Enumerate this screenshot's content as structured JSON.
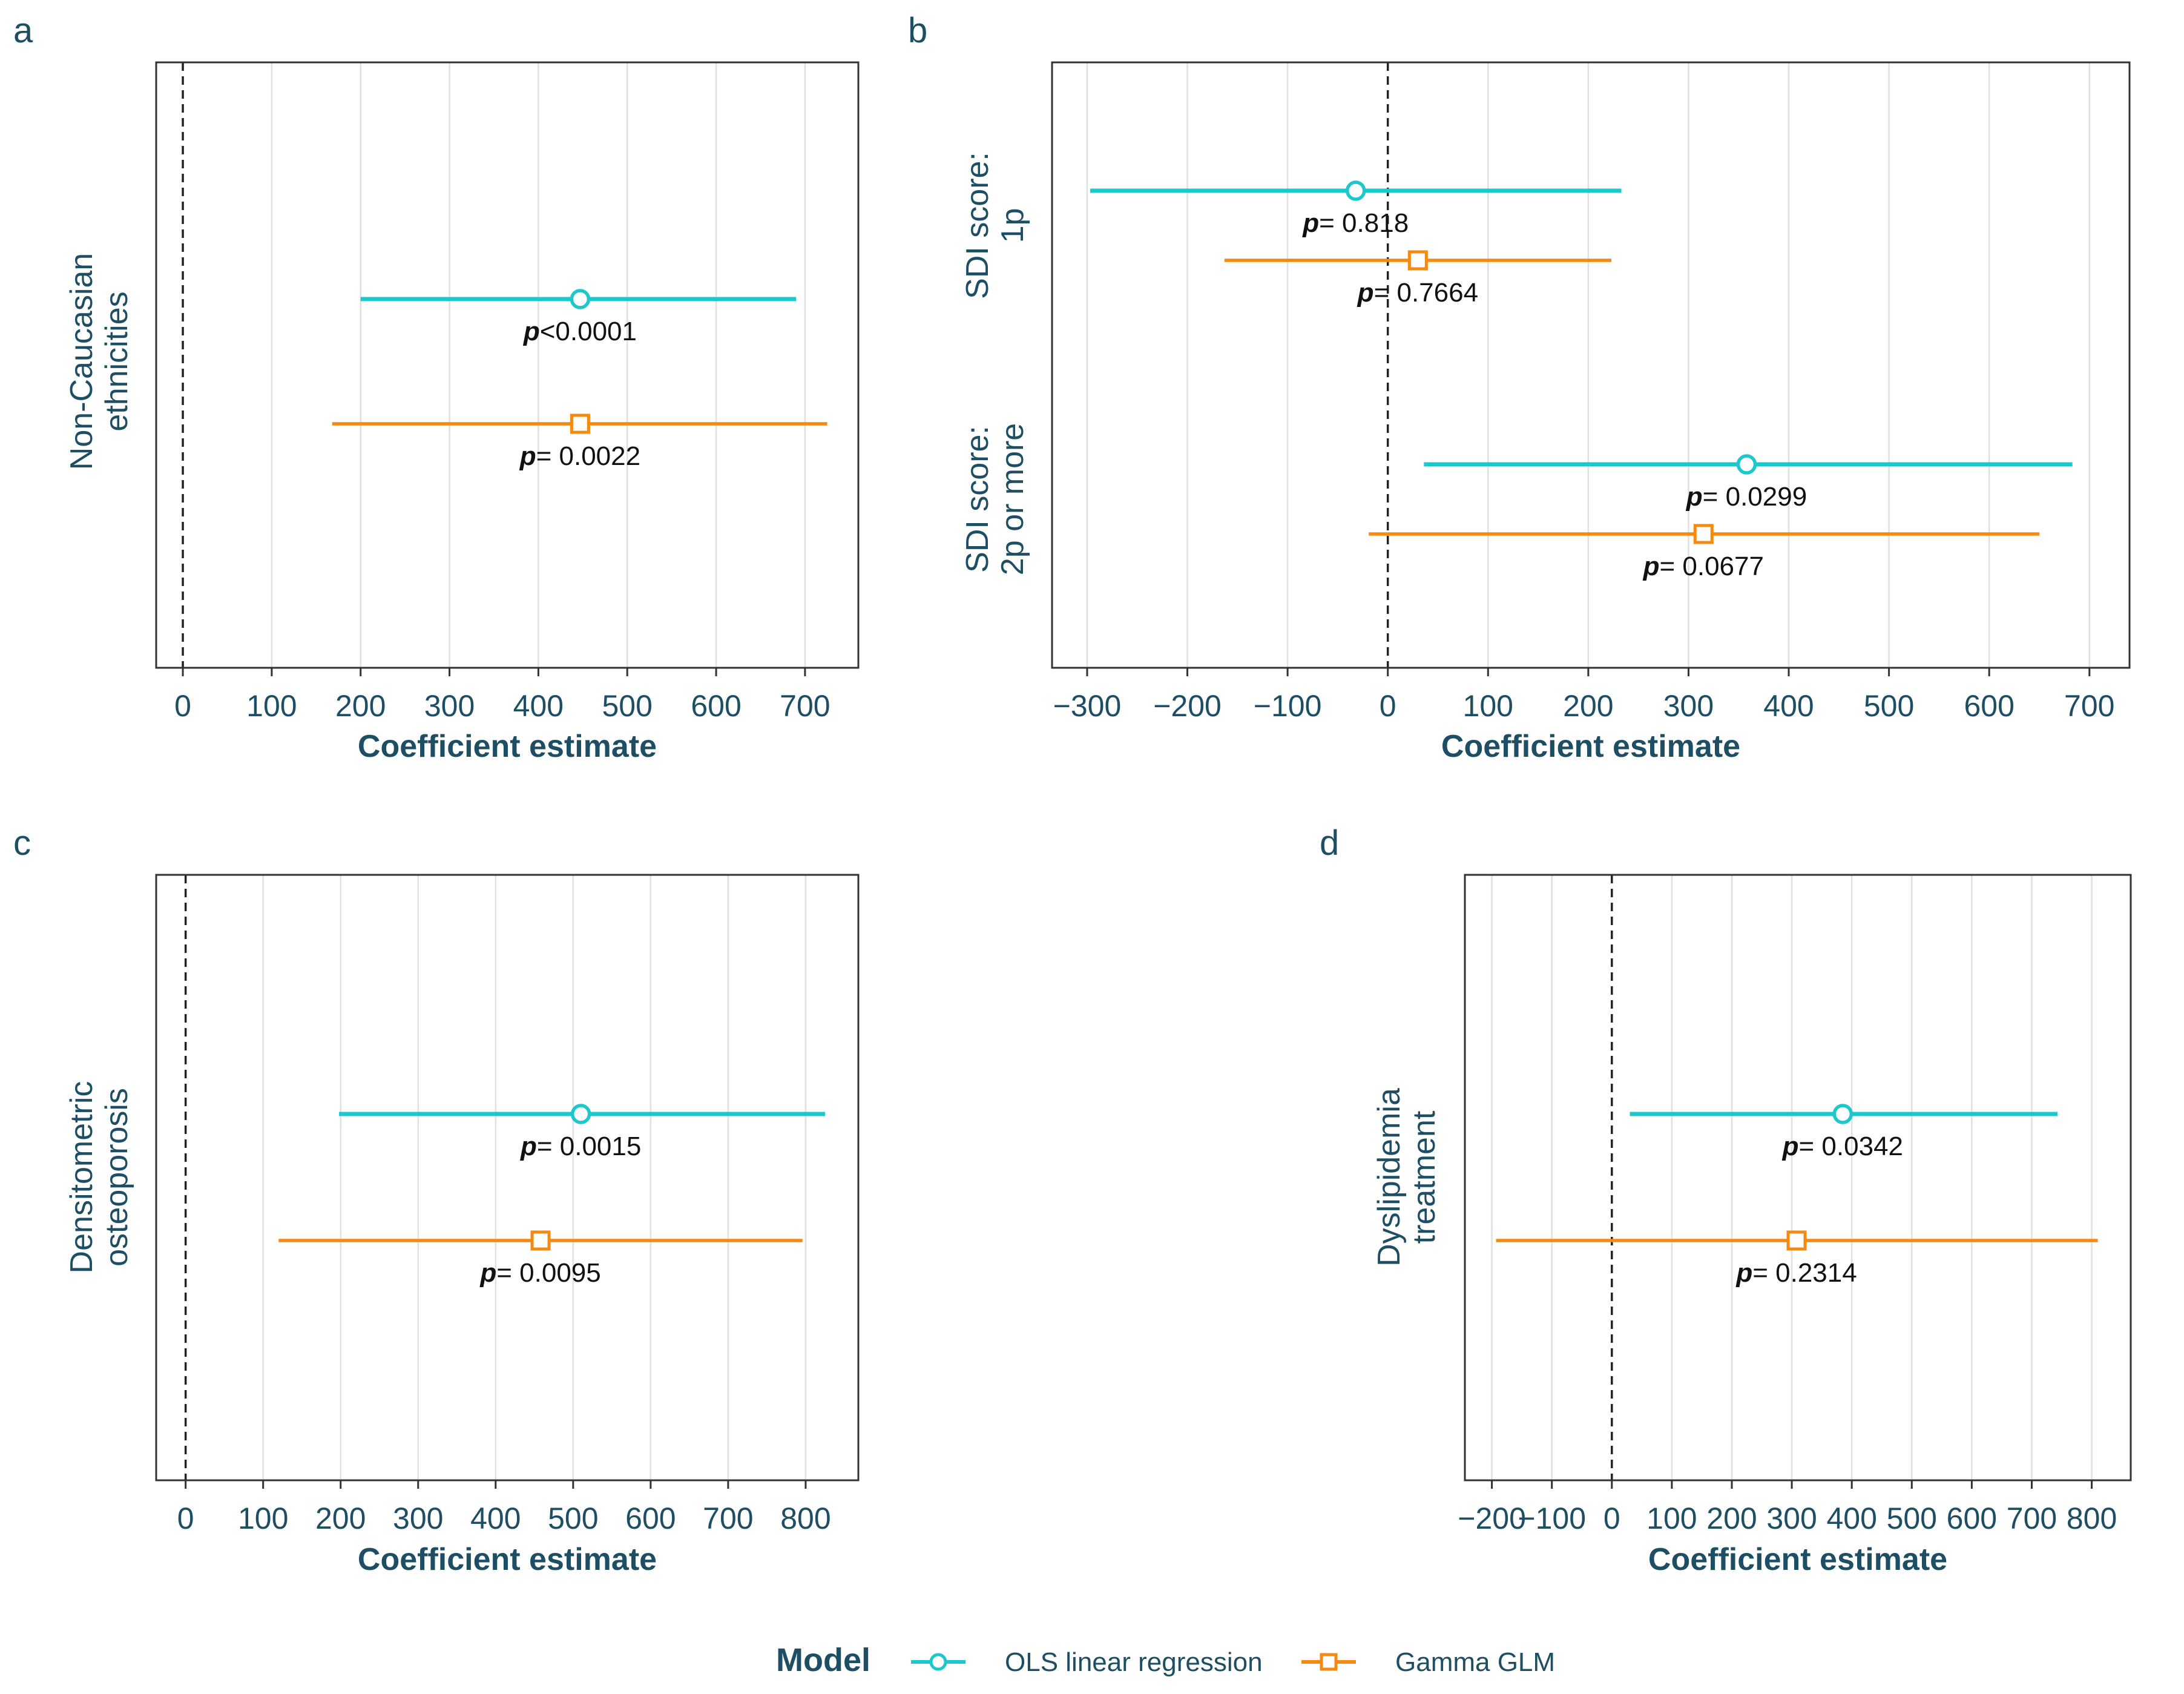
{
  "colors": {
    "ols": "#1cc8cc",
    "gamma": "#f58a12",
    "text": "#1d4e63",
    "grid": "#e0e0e0"
  },
  "legend": {
    "title": "Model",
    "items": [
      {
        "key": "ols",
        "label": "OLS linear regression",
        "marker": "circle"
      },
      {
        "key": "gamma",
        "label": "Gamma GLM",
        "marker": "square"
      }
    ]
  },
  "chart_data": [
    {
      "type": "forest",
      "panel": "a",
      "xlabel": "Coefficient estimate",
      "xlim": [
        -30,
        760
      ],
      "xticks": [
        0,
        100,
        200,
        300,
        400,
        500,
        600,
        700
      ],
      "xtick_labels": [
        "0",
        "100",
        "200",
        "300",
        "400",
        "500",
        "600",
        "700"
      ],
      "reference_line": 0,
      "categories": [
        {
          "label_lines": [
            "Non-Caucasian",
            "ethnicities"
          ],
          "estimates": [
            {
              "model": "ols",
              "est": 447,
              "lo": 200,
              "hi": 690,
              "p_prefix": "p",
              "p_text": "<0.0001"
            },
            {
              "model": "gamma",
              "est": 447,
              "lo": 168,
              "hi": 725,
              "p_prefix": "p",
              "p_text": "= 0.0022"
            }
          ]
        }
      ]
    },
    {
      "type": "forest",
      "panel": "b",
      "xlabel": "Coefficient estimate",
      "xlim": [
        -335,
        740
      ],
      "xticks": [
        -300,
        -200,
        -100,
        0,
        100,
        200,
        300,
        400,
        500,
        600,
        700
      ],
      "xtick_labels": [
        "−300",
        "−200",
        "−100",
        "0",
        "100",
        "200",
        "300",
        "400",
        "500",
        "600",
        "700"
      ],
      "reference_line": 0,
      "categories": [
        {
          "label_lines": [
            "SDI score:",
            "1p"
          ],
          "estimates": [
            {
              "model": "ols",
              "est": -32,
              "lo": -297,
              "hi": 233,
              "p_prefix": "p",
              "p_text": "= 0.818"
            },
            {
              "model": "gamma",
              "est": 30,
              "lo": -163,
              "hi": 223,
              "p_prefix": "p",
              "p_text": "= 0.7664"
            }
          ]
        },
        {
          "label_lines": [
            "SDI score:",
            "2p or more"
          ],
          "estimates": [
            {
              "model": "ols",
              "est": 358,
              "lo": 36,
              "hi": 683,
              "p_prefix": "p",
              "p_text": "= 0.0299"
            },
            {
              "model": "gamma",
              "est": 315,
              "lo": -19,
              "hi": 650,
              "p_prefix": "p",
              "p_text": "= 0.0677"
            }
          ]
        }
      ]
    },
    {
      "type": "forest",
      "panel": "c",
      "xlabel": "Coefficient estimate",
      "xlim": [
        -38,
        868
      ],
      "xticks": [
        0,
        100,
        200,
        300,
        400,
        500,
        600,
        700,
        800
      ],
      "xtick_labels": [
        "0",
        "100",
        "200",
        "300",
        "400",
        "500",
        "600",
        "700",
        "800"
      ],
      "reference_line": 0,
      "categories": [
        {
          "label_lines": [
            "Densitometric",
            "osteoporosis"
          ],
          "estimates": [
            {
              "model": "ols",
              "est": 510,
              "lo": 198,
              "hi": 825,
              "p_prefix": "p",
              "p_text": "= 0.0015"
            },
            {
              "model": "gamma",
              "est": 458,
              "lo": 120,
              "hi": 796,
              "p_prefix": "p",
              "p_text": "= 0.0095"
            }
          ]
        }
      ]
    },
    {
      "type": "forest",
      "panel": "d",
      "xlabel": "Coefficient estimate",
      "xlim": [
        -245,
        865
      ],
      "xticks": [
        -200,
        -100,
        0,
        100,
        200,
        300,
        400,
        500,
        600,
        700,
        800
      ],
      "xtick_labels": [
        "−200",
        "−100",
        "0",
        "100",
        "200",
        "300",
        "400",
        "500",
        "600",
        "700",
        "800"
      ],
      "reference_line": 0,
      "categories": [
        {
          "label_lines": [
            "Dyslipidemia",
            "treatment"
          ],
          "estimates": [
            {
              "model": "ols",
              "est": 385,
              "lo": 30,
              "hi": 743,
              "p_prefix": "p",
              "p_text": "= 0.0342"
            },
            {
              "model": "gamma",
              "est": 308,
              "lo": -193,
              "hi": 810,
              "p_prefix": "p",
              "p_text": "= 0.2314"
            }
          ]
        }
      ]
    }
  ]
}
